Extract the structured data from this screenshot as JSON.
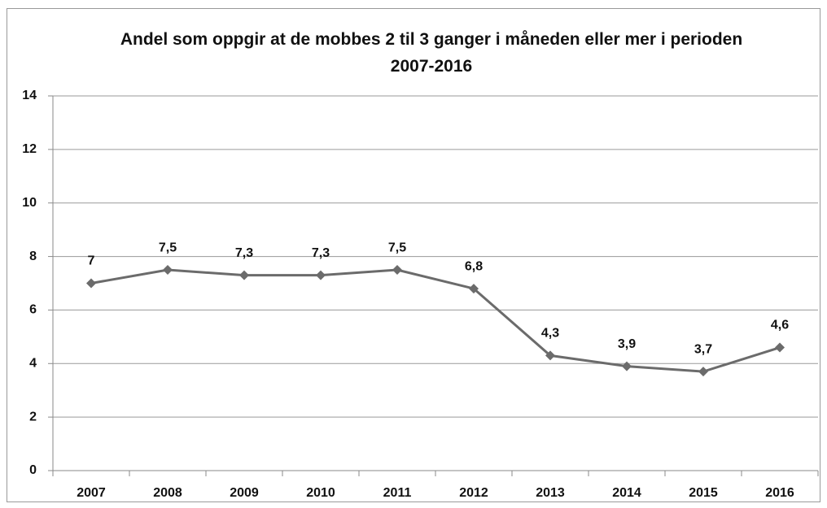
{
  "chart_data": {
    "type": "line",
    "title": "Andel som oppgir at de mobbes 2 til 3 ganger i måneden eller mer i perioden 2007-2016",
    "categories": [
      "2007",
      "2008",
      "2009",
      "2010",
      "2011",
      "2012",
      "2013",
      "2014",
      "2015",
      "2016"
    ],
    "series": [
      {
        "color": "#6b6b6b",
        "values": [
          7,
          7.5,
          7.3,
          7.3,
          7.5,
          6.8,
          4.3,
          3.9,
          3.7,
          4.6
        ],
        "value_labels": [
          "7",
          "7,5",
          "7,3",
          "7,3",
          "7,5",
          "6,8",
          "4,3",
          "3,9",
          "3,7",
          "4,6"
        ]
      }
    ],
    "ylim": [
      0,
      14
    ],
    "yticks": [
      0,
      2,
      4,
      6,
      8,
      10,
      12,
      14
    ],
    "grid": true
  }
}
